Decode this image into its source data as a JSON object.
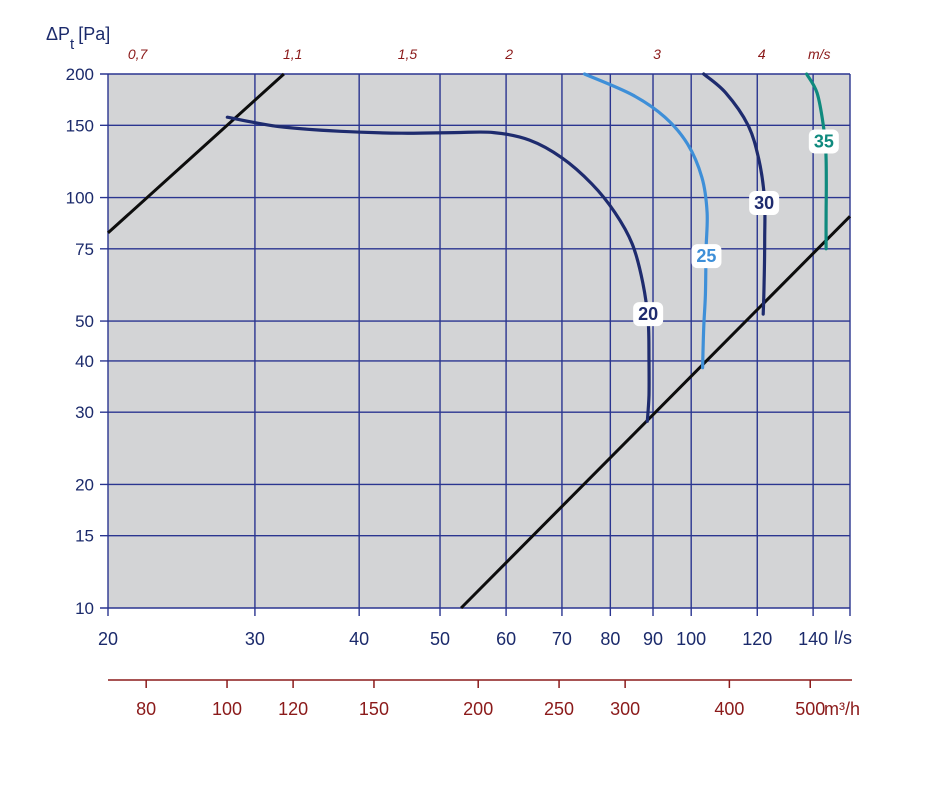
{
  "chart_data": {
    "type": "line",
    "title": "",
    "ylabel": "ΔP",
    "ylabel_sub": "t",
    "ylabel_unit": "[Pa]",
    "xlabel": "l/s",
    "x_scale": "log",
    "y_scale": "log",
    "xlim": [
      20,
      155
    ],
    "ylim": [
      10,
      200
    ],
    "grid": true,
    "x_ticks": [
      20,
      30,
      40,
      50,
      60,
      70,
      80,
      90,
      100,
      120,
      140
    ],
    "y_ticks": [
      10,
      15,
      20,
      30,
      40,
      50,
      75,
      100,
      150,
      200
    ],
    "secondary_x_bottom": {
      "unit": "m³/h",
      "ticks": [
        80,
        100,
        120,
        150,
        200,
        250,
        300,
        400,
        500
      ]
    },
    "secondary_x_top": {
      "unit": "m/s",
      "ticks": [
        {
          "label": "0,7",
          "at_ls": 21.7
        },
        {
          "label": "1,1",
          "at_ls": 33.3
        },
        {
          "label": "1,5",
          "at_ls": 45.7
        },
        {
          "label": "2",
          "at_ls": 60.5
        },
        {
          "label": "3",
          "at_ls": 91
        },
        {
          "label": "4",
          "at_ls": 121.5
        }
      ]
    },
    "limit_lines": [
      {
        "points": [
          [
            20,
            82
          ],
          [
            32.5,
            200
          ]
        ]
      },
      {
        "points": [
          [
            53,
            10
          ],
          [
            155,
            90
          ]
        ]
      }
    ],
    "series": [
      {
        "name": "20",
        "color": "#1e2b6e",
        "label_at": [
          88.8,
          52
        ],
        "points": [
          [
            27.8,
            157
          ],
          [
            32,
            149
          ],
          [
            38,
            145
          ],
          [
            45,
            143.5
          ],
          [
            52,
            144
          ],
          [
            58,
            144
          ],
          [
            64,
            138
          ],
          [
            70,
            125
          ],
          [
            76,
            108
          ],
          [
            81,
            92
          ],
          [
            85,
            77
          ],
          [
            87.5,
            62
          ],
          [
            88.8,
            50
          ],
          [
            89,
            40
          ],
          [
            89,
            33
          ],
          [
            88.6,
            28.5
          ]
        ]
      },
      {
        "name": "25",
        "color": "#3e8fd8",
        "label_at": [
          104.3,
          72
        ],
        "points": [
          [
            74.5,
            200
          ],
          [
            85,
            178
          ],
          [
            93,
            157
          ],
          [
            99,
            135
          ],
          [
            103,
            112
          ],
          [
            104.5,
            92
          ],
          [
            104.2,
            75
          ],
          [
            104,
            58
          ],
          [
            103.5,
            48
          ],
          [
            103.2,
            38.5
          ]
        ]
      },
      {
        "name": "30",
        "color": "#1e2b6e",
        "label_at": [
          122.3,
          97
        ],
        "points": [
          [
            103.5,
            200
          ],
          [
            110,
            180
          ],
          [
            117,
            150
          ],
          [
            120.5,
            124
          ],
          [
            122.4,
            100
          ],
          [
            122.5,
            80
          ],
          [
            122.3,
            62
          ],
          [
            122,
            52
          ]
        ]
      },
      {
        "name": "35",
        "color": "#0f8a7e",
        "label_at": [
          144.2,
          137
        ],
        "points": [
          [
            137.5,
            200
          ],
          [
            141.5,
            180
          ],
          [
            144,
            150
          ],
          [
            145,
            130
          ],
          [
            145.2,
            110
          ],
          [
            145.1,
            90
          ],
          [
            145.1,
            75
          ]
        ]
      }
    ]
  }
}
